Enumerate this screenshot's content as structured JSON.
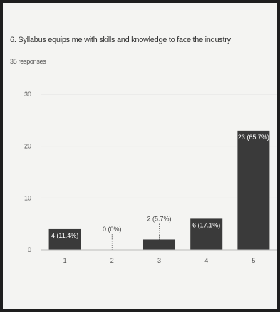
{
  "question": "6. Syllabus equips me with skills and knowledge to face the industry",
  "responses": "35 responses",
  "chart_data": {
    "type": "bar",
    "categories": [
      "1",
      "2",
      "3",
      "4",
      "5"
    ],
    "values": [
      4,
      0,
      2,
      6,
      23
    ],
    "data_labels": [
      "4 (11.4%)",
      "0 (0%)",
      "2 (5.7%)",
      "6 (17.1%)",
      "23 (65.7%)"
    ],
    "yticks": [
      0,
      10,
      20,
      30
    ],
    "ylim": [
      0,
      30
    ],
    "grid": true,
    "bar_color": "#3a3a3a"
  }
}
